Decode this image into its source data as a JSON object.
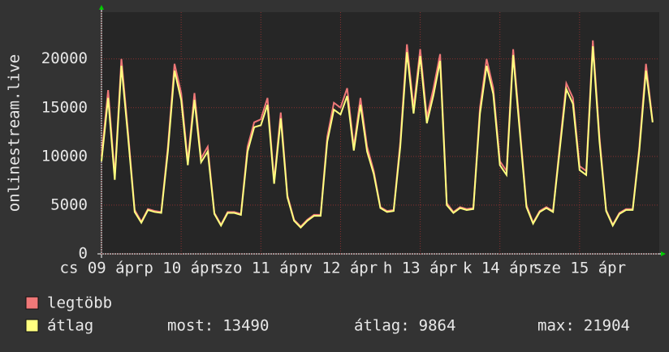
{
  "chart_data": {
    "type": "line",
    "y_label": "onlinestream.live",
    "x": [
      0,
      2,
      4,
      6,
      8,
      10,
      12,
      14,
      16,
      18,
      20,
      22,
      24,
      26,
      28,
      30,
      32,
      34,
      36,
      38,
      40,
      42,
      44,
      46,
      48,
      50,
      52,
      54,
      56,
      58,
      60,
      62,
      64,
      66,
      68,
      70,
      72,
      74,
      76,
      78,
      80,
      82,
      84,
      86,
      88,
      90,
      92,
      94,
      96,
      98,
      100,
      102,
      104,
      106,
      108,
      110,
      112,
      114,
      116,
      118,
      120,
      122,
      124,
      126,
      128,
      130,
      132,
      134,
      136,
      138,
      140,
      142,
      144,
      146,
      148,
      150,
      152,
      154,
      156,
      158,
      160,
      162,
      164,
      166
    ],
    "xlim": [
      0,
      168
    ],
    "xticks": [
      {
        "value": 0,
        "label": "cs 09 ápr"
      },
      {
        "value": 24,
        "label": "p 10 ápr"
      },
      {
        "value": 48,
        "label": "szo 11 ápr"
      },
      {
        "value": 72,
        "label": "v 12 ápr"
      },
      {
        "value": 96,
        "label": "h 13 ápr"
      },
      {
        "value": 120,
        "label": "k 14 ápr"
      },
      {
        "value": 144,
        "label": "sze 15 ápr"
      }
    ],
    "ylim": [
      0,
      24800
    ],
    "yticks": [
      0,
      5000,
      10000,
      15000,
      20000
    ],
    "grid": true,
    "series": [
      {
        "name": "legtöbb",
        "color": "#f07878",
        "values": [
          10000,
          16800,
          8000,
          20000,
          12500,
          4500,
          3300,
          4600,
          4400,
          4300,
          11000,
          19500,
          16500,
          9500,
          16500,
          9800,
          11000,
          4200,
          3000,
          4300,
          4300,
          4100,
          11000,
          13500,
          13800,
          16000,
          7500,
          14500,
          6000,
          3500,
          2800,
          3500,
          4000,
          4000,
          12000,
          15500,
          15000,
          17000,
          11000,
          16000,
          11000,
          8500,
          4800,
          4400,
          4500,
          11500,
          21500,
          15000,
          21000,
          14000,
          17000,
          20500,
          5200,
          4300,
          4800,
          4600,
          4700,
          15000,
          20000,
          17000,
          9500,
          8500,
          21000,
          13000,
          5000,
          3200,
          4400,
          4800,
          4400,
          11000,
          17500,
          16000,
          9000,
          8500,
          21904,
          12000,
          4500,
          3000,
          4200,
          4600,
          4600,
          11000,
          19500,
          13600
        ]
      },
      {
        "name": "átlag",
        "color": "#ffff80",
        "values": [
          9500,
          16000,
          7600,
          19300,
          12000,
          4300,
          3200,
          4500,
          4300,
          4200,
          10500,
          18800,
          15800,
          9100,
          15800,
          9400,
          10500,
          4100,
          2900,
          4200,
          4200,
          4000,
          10500,
          13000,
          13200,
          15300,
          7200,
          13900,
          5800,
          3400,
          2700,
          3400,
          3900,
          3900,
          11500,
          14800,
          14300,
          16200,
          10600,
          15300,
          10500,
          8200,
          4700,
          4300,
          4400,
          11000,
          20700,
          14400,
          20300,
          13400,
          16300,
          19800,
          5000,
          4200,
          4700,
          4500,
          4600,
          14400,
          19300,
          16400,
          9100,
          8100,
          20400,
          12500,
          4800,
          3100,
          4300,
          4700,
          4300,
          10600,
          16900,
          15400,
          8600,
          8100,
          21300,
          11500,
          4400,
          2900,
          4100,
          4500,
          4500,
          10600,
          18800,
          13490
        ]
      }
    ],
    "stats": [
      {
        "label": "most:",
        "value": 13490
      },
      {
        "label": "átlag:",
        "value": 9864
      },
      {
        "label": "max:",
        "value": 21904
      }
    ]
  }
}
